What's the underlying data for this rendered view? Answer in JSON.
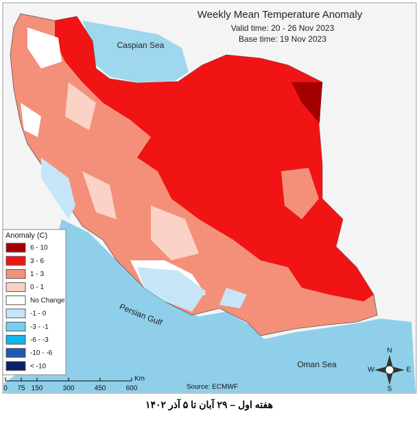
{
  "header": {
    "title": "Weekly Mean Temperature Anomaly",
    "valid_time": "Valid time: 20 - 26 Nov 2023",
    "base_time": "Base time: 19 Nov 2023"
  },
  "labels": {
    "caspian": "Caspian Sea",
    "gulf": "Persian Gulf",
    "oman": "Oman Sea"
  },
  "legend": {
    "title": "Anomaly (C)",
    "items": [
      {
        "label": "6 - 10",
        "color": "#a50000"
      },
      {
        "label": "3 - 6",
        "color": "#f01414"
      },
      {
        "label": "1 - 3",
        "color": "#f4907a"
      },
      {
        "label": "0 - 1",
        "color": "#fbd2c6"
      },
      {
        "label": "No Change",
        "color": "#ffffff"
      },
      {
        "label": "-1 - 0",
        "color": "#c6e6f7"
      },
      {
        "label": "-3 - -1",
        "color": "#72d0f0"
      },
      {
        "label": "-6 - -3",
        "color": "#14b4ec"
      },
      {
        "label": "-10 - -6",
        "color": "#1f5bb5"
      },
      {
        "label": "< -10",
        "color": "#0b1e6b"
      }
    ]
  },
  "scale": {
    "ticks": [
      0,
      75,
      150,
      300,
      450,
      600
    ],
    "unit": "Km"
  },
  "source": "Source: ECMWF",
  "compass": {
    "n": "N",
    "s": "S",
    "e": "E",
    "w": "W"
  },
  "caption": "هفته اول – ۲۹ آبان تا ۵ آذر ۱۴۰۲"
}
